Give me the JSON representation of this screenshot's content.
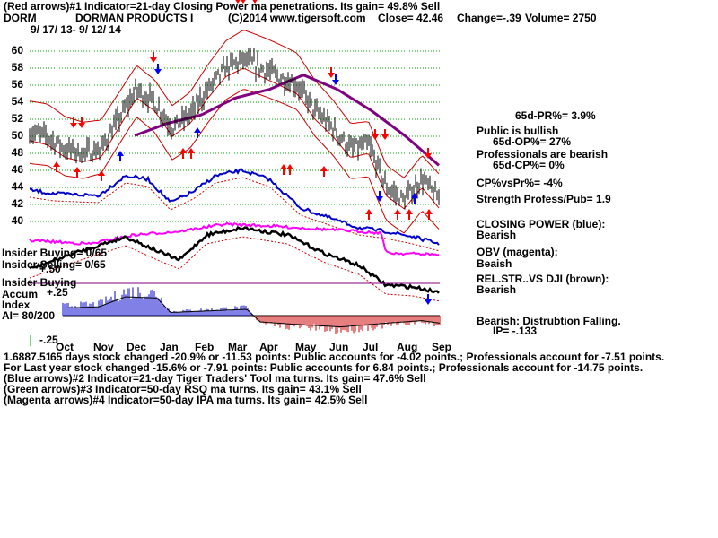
{
  "header": {
    "line1": "(Red arrows)#1 Indicator=21-day Closing Power ma penetrations.  Its gain= 49.8% Sell",
    "symbol": "DORM",
    "company": "DORMAN PRODUCTS I",
    "copyright": "(C)2014 www.tigersoft.com",
    "close": "Close=  42.46",
    "change": "Change=-.39",
    "volume": "Volume= 2750",
    "date_range": "9/ 17/ 13-  9/ 12/ 14"
  },
  "left_labels": {
    "insider_buying_count": "Insider Buying= 0/65",
    "insider_selling_count": "Insider Selling= 0/65",
    "insider_buying": "Insider Buying",
    "accum": "Accum",
    "index": "Index",
    "ai": "AI= 80/200",
    "plus25": "+.25",
    "plus50": "+.50",
    "minus25": "-.25"
  },
  "side_panel": {
    "pr": "65d-PR%= 3.9%",
    "public_bull": "Public is bullish",
    "op": "65d-OP%= 27%",
    "prof_bear": "Professionals are bearish",
    "cp": "65d-CP%= 0%",
    "cpvspr": "CP%vsPr%= -4%",
    "strength": "Strength Profess/Pub= 1.9",
    "closing_power": "CLOSING POWER (blue):",
    "closing_power_val": "Bearish",
    "obv": "OBV (magenta):",
    "obv_val": "Beaish",
    "relstr": "REL.STR..VS DJI (brown):",
    "relstr_val": "Bearish",
    "distribution": "Bearish: Distrubtion Falling.",
    "ip": "IP= -.133"
  },
  "footer": {
    "overlap": "1.6887.51",
    "line1": " 65 days stock changed -20.9% or -11.53 points:  Public accounts for -4.02 points.;  Professionals account for -7.51 points.",
    "line2": "For Last year stock changed -15.6% or -7.91 points:  Public accounts for  6.84 points.;  Professionals account for -14.75 points.",
    "line3": "(Blue arrows)#2 Indicator=21-day Tiger Traders' Tool ma turns.  Its gain= 47.6% Sell",
    "line4": "(Green arrows)#3 Indicator=50-day RSQ ma turns.  Its gain= 43.1% Sell",
    "line5": "(Magenta arrows)#4 Indicator=50-day IPA ma turns.  Its gain= 42.5% Sell"
  },
  "colors": {
    "price": "#000000",
    "grid": "#00aa00",
    "bands": "#cc0000",
    "ma50": "#800080",
    "closing_power": "#0000cc",
    "obv": "#ff00ff",
    "relstr": "#000000",
    "accum_pos": "#0000cc",
    "accum_neg": "#cc0000",
    "arrow_red": "#ff0000",
    "arrow_blue": "#0000ff"
  },
  "chart_data": {
    "type": "line",
    "title": "DORMAN PRODUCTS I",
    "x": [
      "Oct",
      "Nov",
      "Dec",
      "Jan",
      "Feb",
      "Mar",
      "Apr",
      "May",
      "Jun",
      "Jul",
      "Aug",
      "Sep"
    ],
    "ylim": [
      40,
      60
    ],
    "y_ticks": [
      40,
      42,
      44,
      46,
      48,
      50,
      52,
      54,
      56,
      58,
      60
    ],
    "series": [
      {
        "x": [
          "Sep 17",
          "Oct 1",
          "Oct 15",
          "Nov 1",
          "Nov 15",
          "Dec 1",
          "Dec 15",
          "Jan 1",
          "Jan 15",
          "Feb 1",
          "Feb 15",
          "Mar 1",
          "Mar 15",
          "Apr 1",
          "Apr 15",
          "May 1",
          "May 15",
          "Jun 1",
          "Jun 15",
          "Jul 1",
          "Jul 15",
          "Aug 1",
          "Aug 15",
          "Sep 12"
        ],
        "values": [
          50.5,
          50,
          48.5,
          48,
          48.5,
          52,
          55.5,
          54,
          51,
          52.5,
          55.5,
          58,
          59,
          58,
          57,
          56,
          53,
          51,
          48.5,
          49,
          44,
          42.5,
          45,
          42.46
        ]
      },
      {
        "name": "50-day ma",
        "x": [
          "Dec 15",
          "Jan 1",
          "Feb 1",
          "Mar 1",
          "Apr 1",
          "May 1",
          "Jun 1",
          "Jul 1",
          "Aug 1",
          "Sep 12"
        ],
        "values": [
          50,
          51.5,
          52.5,
          54.5,
          55.5,
          57.2,
          55.5,
          53,
          50,
          46.5
        ]
      }
    ],
    "grid": true
  }
}
